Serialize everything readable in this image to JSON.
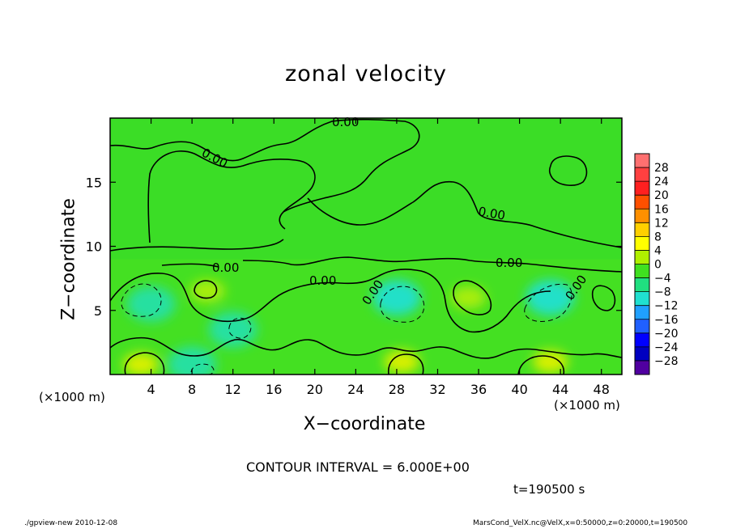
{
  "chart_data": {
    "type": "heatmap",
    "title": "zonal velocity",
    "xlabel": "X−coordinate",
    "ylabel": "Z−coordinate",
    "x_unit_label_left": "(×1000 m)",
    "x_unit_label_right": "(×1000 m)",
    "xlim": [
      0,
      50
    ],
    "ylim": [
      0,
      20
    ],
    "x_ticks": [
      4,
      8,
      12,
      16,
      20,
      24,
      28,
      32,
      36,
      40,
      44,
      48
    ],
    "y_ticks": [
      5,
      10,
      15
    ],
    "contour_interval_text": "CONTOUR INTERVAL = 6.000E+00",
    "time_text": "t=190500 s",
    "contour_labels": [
      "0.00",
      "0.00",
      "0.00",
      "0.00",
      "0.00",
      "0.00",
      "0.00",
      "0.00"
    ],
    "colorbar": {
      "labels": [
        "28",
        "24",
        "20",
        "16",
        "12",
        "8",
        "4",
        "0",
        "−4",
        "−8",
        "−12",
        "−16",
        "−20",
        "−24",
        "−28"
      ],
      "colors": [
        "#ff7070",
        "#ff4040",
        "#ff2020",
        "#ff5000",
        "#ff9000",
        "#ffd000",
        "#ffff00",
        "#b0f000",
        "#40e020",
        "#20e080",
        "#20e0d0",
        "#20a0ff",
        "#2060ff",
        "#0000ff",
        "#0000c0",
        "#5000a0"
      ]
    },
    "background_color": "#44e022",
    "features": [
      {
        "kind": "negative",
        "x": 4.0,
        "z": 5.5,
        "value": -8
      },
      {
        "kind": "negative",
        "x": 12.0,
        "z": 3.5,
        "value": -8
      },
      {
        "kind": "negative",
        "x": 28.0,
        "z": 6.0,
        "value": -10
      },
      {
        "kind": "negative",
        "x": 43.0,
        "z": 6.0,
        "value": -9
      },
      {
        "kind": "negative",
        "x": 8.0,
        "z": 0.8,
        "value": -8
      },
      {
        "kind": "positive",
        "x": 3.0,
        "z": 0.8,
        "value": 8
      },
      {
        "kind": "positive",
        "x": 28.5,
        "z": 1.0,
        "value": 8
      },
      {
        "kind": "positive",
        "x": 43.0,
        "z": 1.0,
        "value": 8
      },
      {
        "kind": "positive",
        "x": 35.0,
        "z": 6.0,
        "value": 7
      },
      {
        "kind": "positive",
        "x": 9.5,
        "z": 6.5,
        "value": 5
      }
    ]
  },
  "footer": {
    "left": "./gpview-new  2010-12-08",
    "right": "MarsCond_VelX.nc@VelX,x=0:50000,z=0:20000,t=190500"
  }
}
